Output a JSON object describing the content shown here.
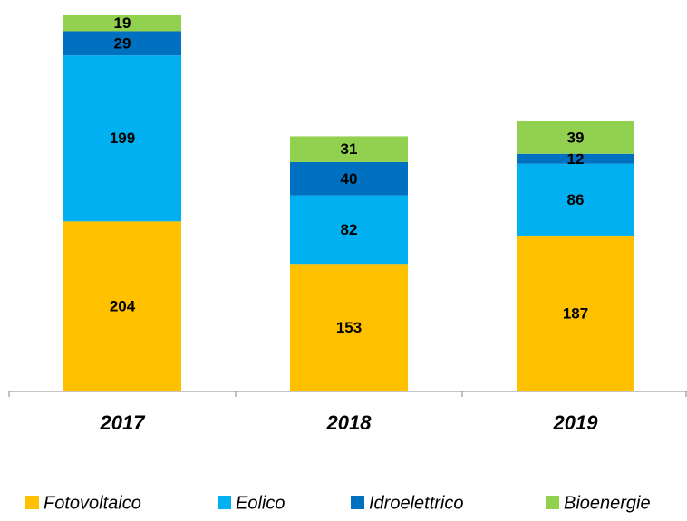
{
  "chart_data": {
    "type": "stacked_bar",
    "categories": [
      "2017",
      "2018",
      "2019"
    ],
    "series": [
      {
        "name": "Fotovoltaico",
        "color": "#FFC000",
        "values": [
          204,
          153,
          187
        ]
      },
      {
        "name": "Eolico",
        "color": "#00B0F0",
        "values": [
          199,
          82,
          86
        ]
      },
      {
        "name": "Idroelettrico",
        "color": "#0070C0",
        "values": [
          29,
          40,
          12
        ]
      },
      {
        "name": "Bioenergie",
        "color": "#92D050",
        "values": [
          19,
          31,
          39
        ]
      }
    ],
    "legend": "bottom"
  }
}
